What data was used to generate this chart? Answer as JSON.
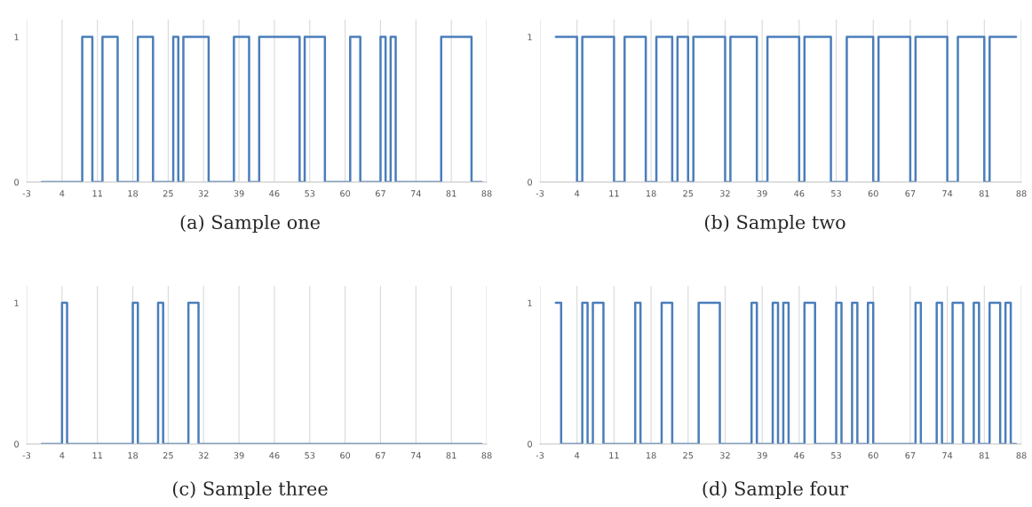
{
  "chart_data": [
    {
      "type": "line",
      "title": "(a) Sample one",
      "xlim": [
        -3,
        88
      ],
      "ylim": [
        0,
        1.12
      ],
      "xticks": [
        -3,
        4,
        11,
        18,
        25,
        32,
        39,
        46,
        53,
        60,
        67,
        74,
        81,
        88
      ],
      "yticks": [
        0,
        1
      ],
      "grid": "x",
      "line_style": "solid",
      "series": [
        {
          "color": "#4a7ebb",
          "x": [
            0,
            8,
            8,
            10,
            10,
            12,
            12,
            15,
            15,
            19,
            19,
            22,
            22,
            26,
            26,
            27,
            27,
            28,
            28,
            33,
            33,
            38,
            38,
            41,
            41,
            43,
            43,
            51,
            51,
            52,
            52,
            56,
            56,
            61,
            61,
            63,
            63,
            67,
            67,
            68,
            68,
            69,
            69,
            70,
            70,
            79,
            79,
            85,
            85,
            87
          ],
          "values": [
            0,
            0,
            1,
            1,
            0,
            0,
            1,
            1,
            0,
            0,
            1,
            1,
            0,
            0,
            1,
            1,
            0,
            0,
            1,
            1,
            0,
            0,
            1,
            1,
            0,
            0,
            1,
            1,
            0,
            0,
            1,
            1,
            0,
            0,
            1,
            1,
            0,
            0,
            1,
            1,
            0,
            0,
            1,
            1,
            0,
            0,
            1,
            1,
            0,
            0
          ]
        }
      ]
    },
    {
      "type": "line",
      "title": "(b) Sample two",
      "xlim": [
        -3,
        88
      ],
      "ylim": [
        0,
        1.12
      ],
      "xticks": [
        -3,
        4,
        11,
        18,
        25,
        32,
        39,
        46,
        53,
        60,
        67,
        74,
        81,
        88
      ],
      "yticks": [
        0,
        1
      ],
      "grid": "x",
      "line_style": "solid",
      "series": [
        {
          "color": "#4a7ebb",
          "x": [
            0,
            4,
            4,
            5,
            5,
            11,
            11,
            13,
            13,
            17,
            17,
            19,
            19,
            22,
            22,
            23,
            23,
            25,
            25,
            26,
            26,
            32,
            32,
            33,
            33,
            38,
            38,
            40,
            40,
            46,
            46,
            47,
            47,
            52,
            52,
            55,
            55,
            60,
            60,
            61,
            61,
            67,
            67,
            68,
            68,
            74,
            74,
            76,
            76,
            81,
            81,
            82,
            82,
            87
          ],
          "values": [
            1,
            1,
            0,
            0,
            1,
            1,
            0,
            0,
            1,
            1,
            0,
            0,
            1,
            1,
            0,
            0,
            1,
            1,
            0,
            0,
            1,
            1,
            0,
            0,
            1,
            1,
            0,
            0,
            1,
            1,
            0,
            0,
            1,
            1,
            0,
            0,
            1,
            1,
            0,
            0,
            1,
            1,
            0,
            0,
            1,
            1,
            0,
            0,
            1,
            1,
            0,
            0,
            1,
            1
          ]
        }
      ]
    },
    {
      "type": "line",
      "title": "(c) Sample three",
      "xlim": [
        -3,
        88
      ],
      "ylim": [
        0,
        1.12
      ],
      "xticks": [
        -3,
        4,
        11,
        18,
        25,
        32,
        39,
        46,
        53,
        60,
        67,
        74,
        81,
        88
      ],
      "yticks": [
        0,
        1
      ],
      "grid": "x",
      "line_style": "solid",
      "series": [
        {
          "color": "#4a7ebb",
          "x": [
            0,
            4,
            4,
            5,
            5,
            18,
            18,
            19,
            19,
            23,
            23,
            24,
            24,
            29,
            29,
            31,
            31,
            87
          ],
          "values": [
            0,
            0,
            1,
            1,
            0,
            0,
            1,
            1,
            0,
            0,
            1,
            1,
            0,
            0,
            1,
            1,
            0,
            0
          ]
        }
      ]
    },
    {
      "type": "line",
      "title": "(d) Sample four",
      "xlim": [
        -3,
        88
      ],
      "ylim": [
        0,
        1.12
      ],
      "xticks": [
        -3,
        4,
        11,
        18,
        25,
        32,
        39,
        46,
        53,
        60,
        67,
        74,
        81,
        88
      ],
      "yticks": [
        0,
        1
      ],
      "grid": "x",
      "line_style": "solid",
      "series": [
        {
          "color": "#4a7ebb",
          "x": [
            0,
            1,
            1,
            5,
            5,
            6,
            6,
            7,
            7,
            9,
            9,
            15,
            15,
            16,
            16,
            20,
            20,
            22,
            22,
            27,
            27,
            31,
            31,
            37,
            37,
            38,
            38,
            41,
            41,
            42,
            42,
            43,
            43,
            44,
            44,
            47,
            47,
            49,
            49,
            53,
            53,
            54,
            54,
            56,
            56,
            57,
            57,
            59,
            59,
            60,
            60,
            68,
            68,
            69,
            69,
            72,
            72,
            73,
            73,
            75,
            75,
            77,
            77,
            79,
            79,
            80,
            80,
            82,
            82,
            84,
            84,
            85,
            85,
            86,
            86,
            87
          ],
          "values": [
            1,
            1,
            0,
            0,
            1,
            1,
            0,
            0,
            1,
            1,
            0,
            0,
            1,
            1,
            0,
            0,
            1,
            1,
            0,
            0,
            1,
            1,
            0,
            0,
            1,
            1,
            0,
            0,
            1,
            1,
            0,
            0,
            1,
            1,
            0,
            0,
            1,
            1,
            0,
            0,
            1,
            1,
            0,
            0,
            1,
            1,
            0,
            0,
            1,
            1,
            0,
            0,
            1,
            1,
            0,
            0,
            1,
            1,
            0,
            0,
            1,
            1,
            0,
            0,
            1,
            1,
            0,
            0,
            1,
            1,
            0,
            0,
            1,
            1,
            0,
            0
          ]
        }
      ]
    }
  ]
}
